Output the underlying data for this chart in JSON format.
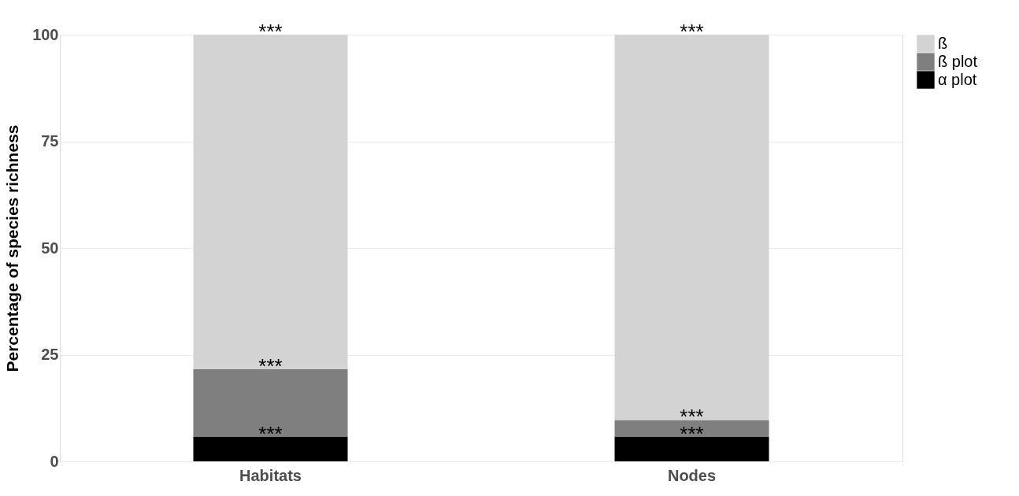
{
  "chart_data": {
    "type": "bar",
    "stacked": true,
    "ylabel": "Percentage of species richness",
    "categories": [
      "Habitats",
      "Nodes"
    ],
    "series": [
      {
        "name": "α plot",
        "color": "#000000",
        "values": [
          5.8,
          5.8
        ]
      },
      {
        "name": "ß plot",
        "color": "#7f7f7f",
        "values": [
          15.8,
          3.9
        ]
      },
      {
        "name": "ß",
        "color": "#d3d3d3",
        "values": [
          78.4,
          90.3
        ]
      }
    ],
    "ylim": [
      0,
      100
    ],
    "yticks": [
      0,
      25,
      50,
      75,
      100
    ],
    "grid": true,
    "legend": "right",
    "annotations": [
      {
        "text": "***",
        "x": "Habitats",
        "y": 100
      },
      {
        "text": "***",
        "x": "Habitats",
        "y": 21.6
      },
      {
        "text": "***",
        "x": "Habitats",
        "y": 5.8
      },
      {
        "text": "***",
        "x": "Nodes",
        "y": 100
      },
      {
        "text": "***",
        "x": "Nodes",
        "y": 9.7
      },
      {
        "text": "***",
        "x": "Nodes",
        "y": 5.8
      }
    ]
  }
}
